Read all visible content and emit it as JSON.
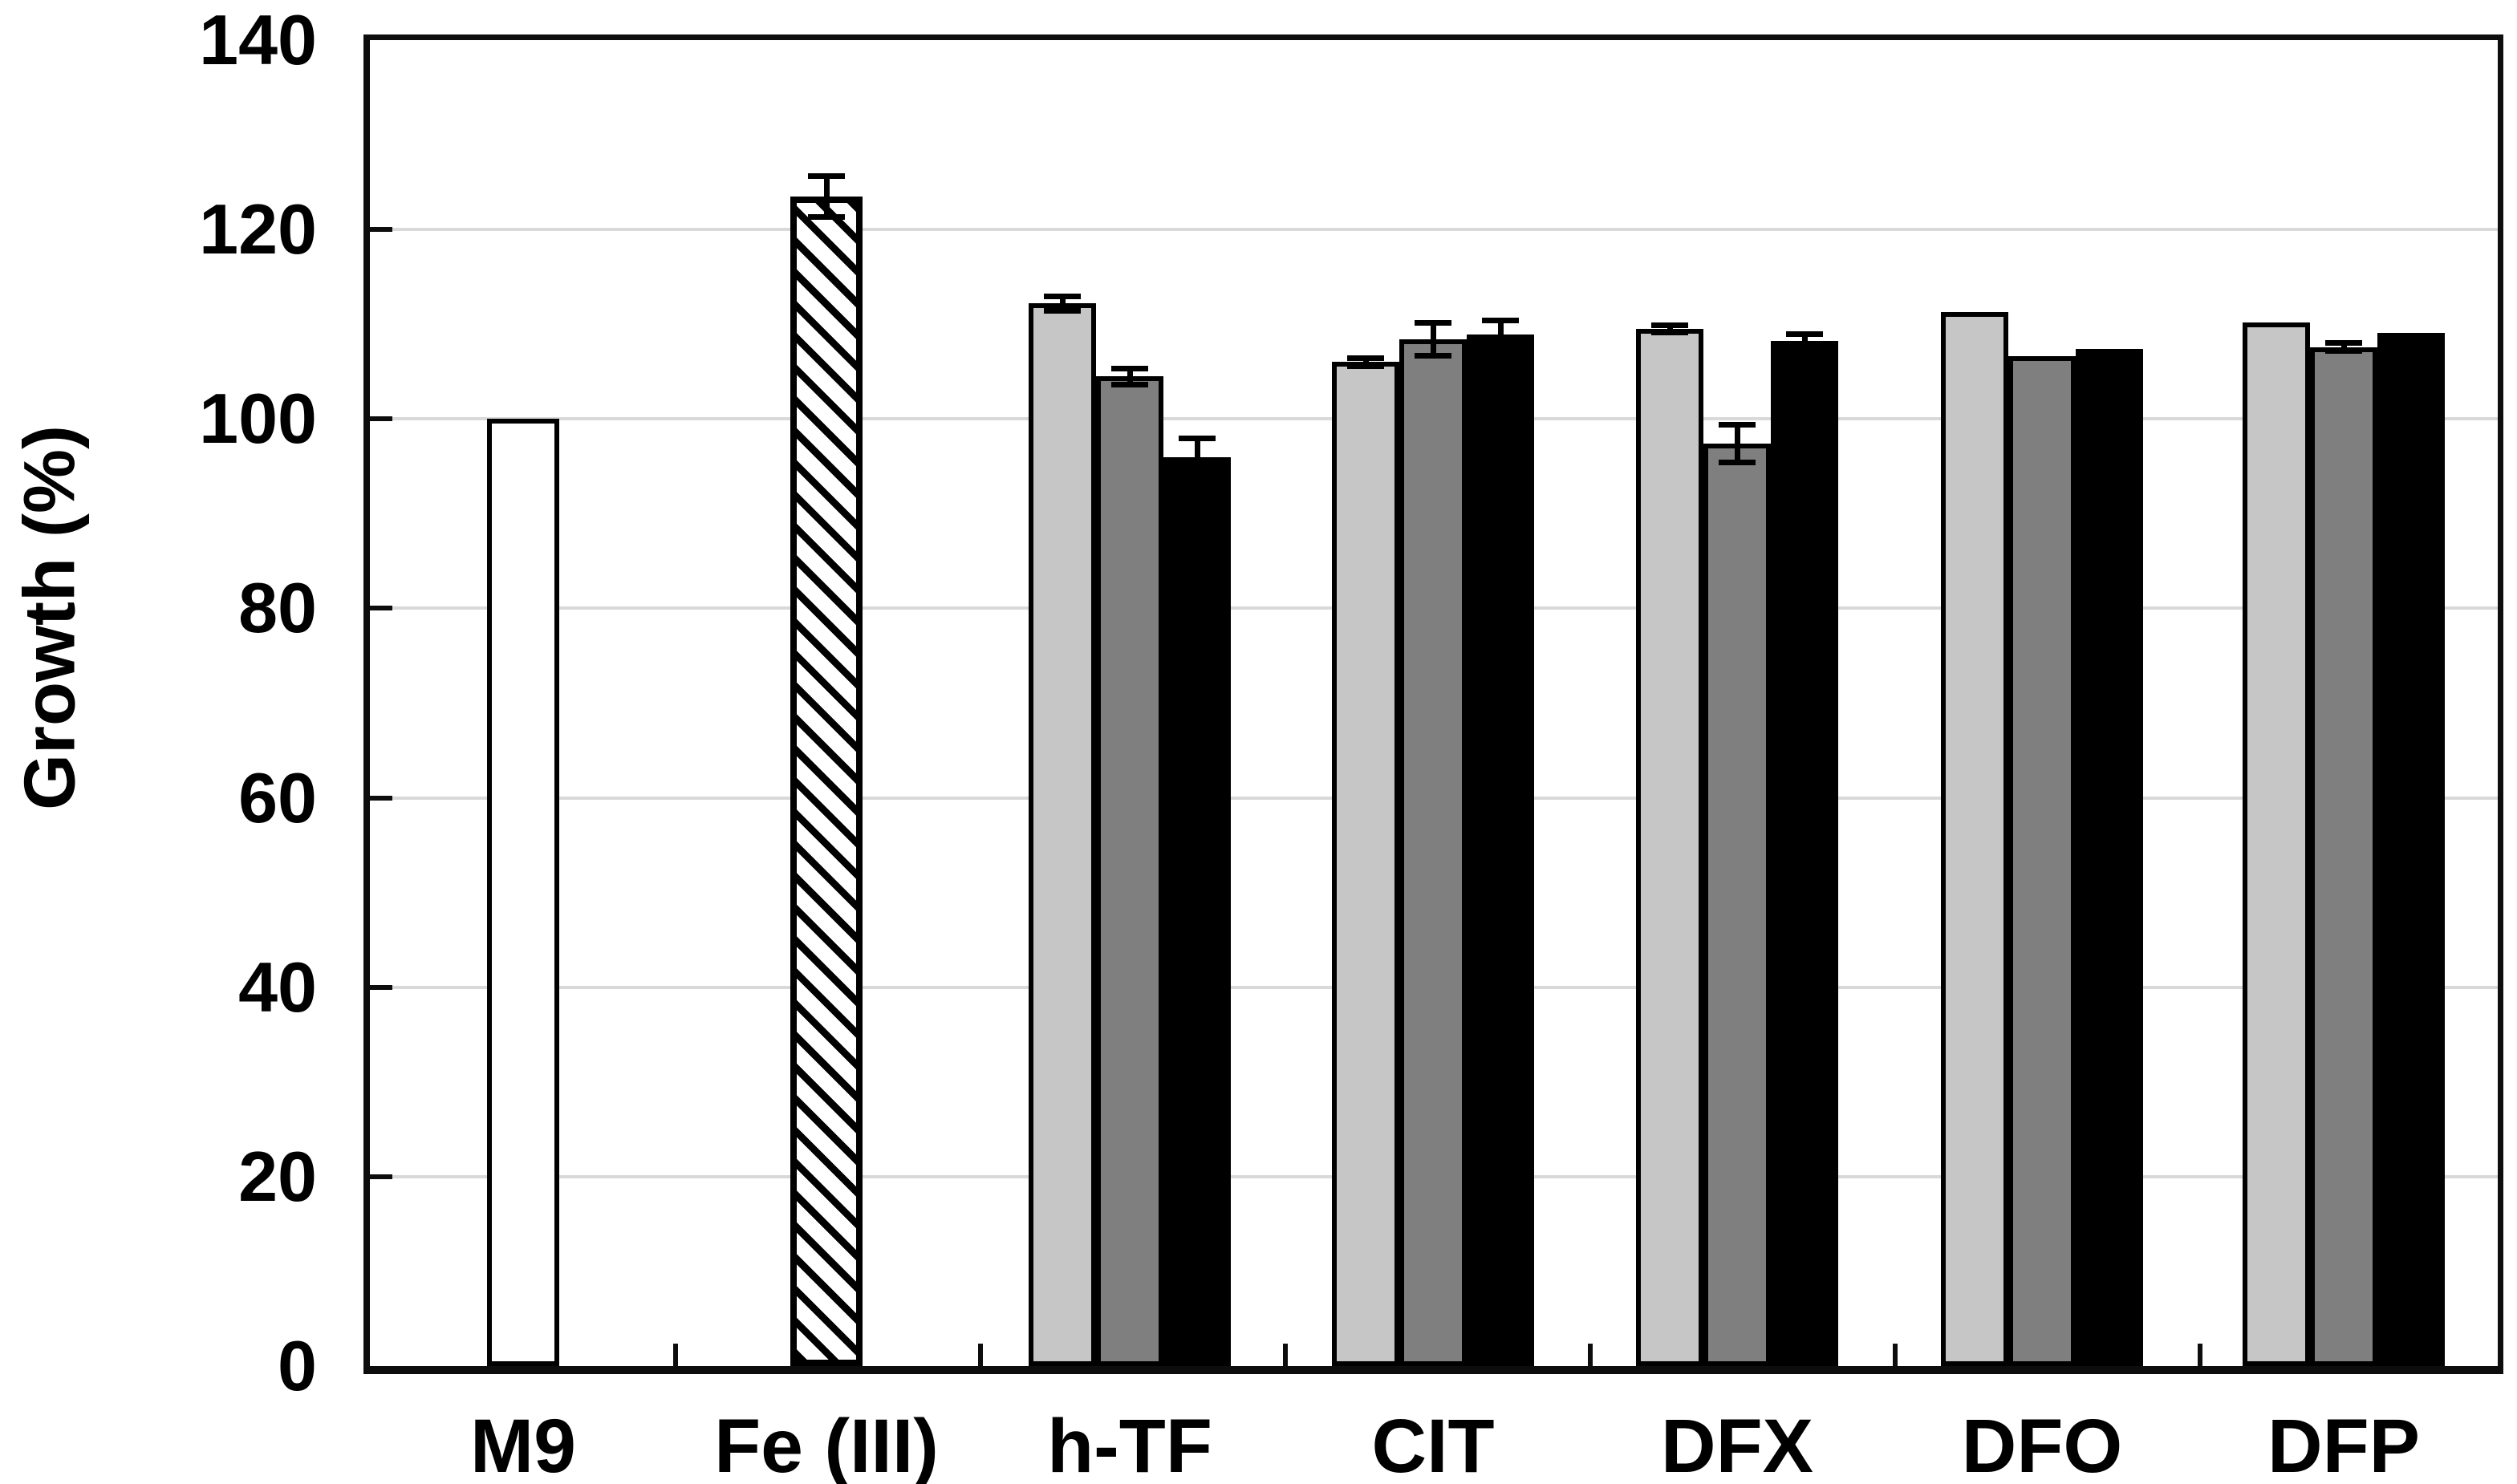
{
  "figure": {
    "background": "#ffffff",
    "frame_color": "#0d0d0d",
    "grid_color": "#d9d9d9"
  },
  "chart_data": {
    "type": "bar",
    "title": "",
    "xlabel": "",
    "ylabel": "Growth (%)",
    "ylim": [
      0,
      140
    ],
    "yticks": [
      0,
      20,
      40,
      60,
      80,
      100,
      120,
      140
    ],
    "grid": "horizontal gridlines every 20, light gray",
    "legend": "none",
    "categories": [
      "M9",
      "Fe (III)",
      "h-TF",
      "CIT",
      "DFX",
      "DFO",
      "DFP"
    ],
    "bar_styles": {
      "white": {
        "fill": "#ffffff",
        "border": "#000000",
        "pattern": "solid"
      },
      "hatched": {
        "fill": "#ffffff",
        "border": "#000000",
        "pattern": "diagonal-black-stripes"
      },
      "lgray": {
        "fill": "#c6c6c6",
        "border": "#000000",
        "pattern": "solid"
      },
      "dgray": {
        "fill": "#7f7f7f",
        "border": "#000000",
        "pattern": "solid"
      },
      "black": {
        "fill": "#000000",
        "border": "#000000",
        "pattern": "solid"
      }
    },
    "groups": [
      {
        "category": "M9",
        "bars": [
          {
            "style": "white",
            "value": 100.0,
            "error": 0
          }
        ]
      },
      {
        "category": "Fe (III)",
        "bars": [
          {
            "style": "hatched",
            "value": 123.5,
            "error": 2.2
          }
        ]
      },
      {
        "category": "h-TF",
        "bars": [
          {
            "style": "lgray",
            "value": 112.2,
            "error": 0.8
          },
          {
            "style": "dgray",
            "value": 104.5,
            "error": 0.9
          },
          {
            "style": "black",
            "value": 96.0,
            "error": 2.0
          }
        ]
      },
      {
        "category": "CIT",
        "bars": [
          {
            "style": "lgray",
            "value": 106.0,
            "error": 0.5
          },
          {
            "style": "dgray",
            "value": 108.4,
            "error": 1.8
          },
          {
            "style": "black",
            "value": 108.9,
            "error": 1.5
          }
        ]
      },
      {
        "category": "DFX",
        "bars": [
          {
            "style": "lgray",
            "value": 109.5,
            "error": 0.4
          },
          {
            "style": "dgray",
            "value": 97.4,
            "error": 2.0
          },
          {
            "style": "black",
            "value": 108.2,
            "error": 0.8
          }
        ]
      },
      {
        "category": "DFO",
        "bars": [
          {
            "style": "lgray",
            "value": 111.3,
            "error": 0
          },
          {
            "style": "dgray",
            "value": 106.6,
            "error": 0
          },
          {
            "style": "black",
            "value": 107.4,
            "error": 0
          }
        ]
      },
      {
        "category": "DFP",
        "bars": [
          {
            "style": "lgray",
            "value": 110.2,
            "error": 0
          },
          {
            "style": "dgray",
            "value": 107.6,
            "error": 0.5
          },
          {
            "style": "black",
            "value": 109.1,
            "error": 0
          }
        ]
      }
    ]
  }
}
